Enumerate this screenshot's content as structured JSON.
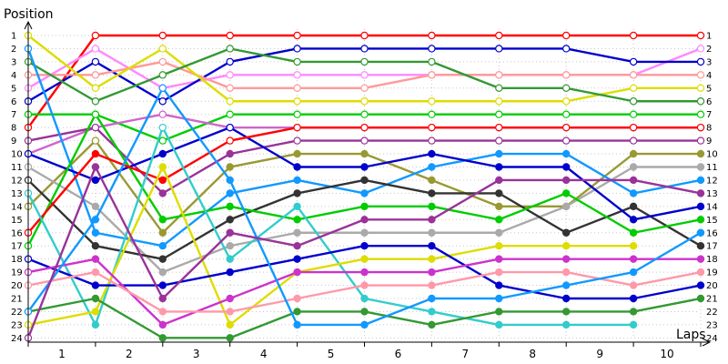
{
  "chart_data": {
    "type": "line",
    "xlabel": "Laps",
    "ylabel": "Position",
    "x_ticks": [
      1,
      2,
      3,
      4,
      5,
      6,
      7,
      8,
      9,
      10
    ],
    "y_ticks": [
      1,
      2,
      3,
      4,
      5,
      6,
      7,
      8,
      9,
      10,
      11,
      12,
      13,
      14,
      15,
      16,
      17,
      18,
      19,
      20,
      21,
      22,
      23,
      24
    ],
    "ylim": [
      1,
      24
    ],
    "y_inverted": true,
    "grid": true,
    "x": [
      0,
      1,
      2,
      3,
      4,
      5,
      6,
      7,
      8,
      9,
      10
    ],
    "series": [
      {
        "color": "#ff0000",
        "values": [
          8,
          1,
          1,
          1,
          1,
          1,
          1,
          1,
          1,
          1,
          1
        ]
      },
      {
        "color": "#ff88ff",
        "values": [
          5,
          2,
          5,
          4,
          4,
          4,
          4,
          4,
          4,
          4,
          2
        ]
      },
      {
        "color": "#0000cc",
        "values": [
          6,
          3,
          6,
          3,
          2,
          2,
          2,
          2,
          2,
          3,
          3
        ]
      },
      {
        "color": "#ff9999",
        "values": [
          4,
          4,
          3,
          5,
          5,
          5,
          4,
          4,
          4,
          4,
          4
        ]
      },
      {
        "color": "#dddd00",
        "values": [
          1,
          5,
          2,
          6,
          6,
          6,
          6,
          6,
          6,
          5,
          5
        ]
      },
      {
        "color": "#339933",
        "values": [
          3,
          6,
          4,
          2,
          3,
          3,
          3,
          5,
          5,
          6,
          6
        ]
      },
      {
        "color": "#00cc00",
        "values": [
          7,
          7,
          9,
          7,
          7,
          7,
          7,
          7,
          7,
          7,
          7
        ]
      },
      {
        "color": "#cc66cc",
        "values": [
          10,
          8,
          7,
          8,
          8,
          8,
          8,
          8,
          8,
          8,
          8
        ]
      },
      {
        "color": "#993399",
        "values": [
          9,
          8,
          13,
          10,
          9,
          9,
          9,
          9,
          9,
          9,
          9
        ]
      },
      {
        "color": "#999933",
        "values": [
          14,
          9,
          16,
          11,
          10,
          10,
          12,
          14,
          14,
          10,
          10
        ]
      },
      {
        "color": "#aaaaaa",
        "values": [
          11,
          14,
          19,
          17,
          16,
          16,
          16,
          16,
          14,
          11,
          11
        ]
      },
      {
        "color": "#1199ff",
        "values": [
          2,
          16,
          17,
          13,
          12,
          13,
          11,
          10,
          10,
          13,
          12
        ]
      },
      {
        "color": "#333333",
        "values": [
          12,
          17,
          18,
          15,
          13,
          12,
          13,
          13,
          16,
          14,
          17
        ]
      },
      {
        "color": "#0000cc",
        "values": [
          10,
          12,
          10,
          8,
          11,
          11,
          10,
          11,
          11,
          15,
          14
        ]
      },
      {
        "color": "#00cc00",
        "values": [
          17,
          7,
          15,
          14,
          15,
          14,
          14,
          15,
          13,
          16,
          15
        ]
      },
      {
        "color": "#ff0000",
        "values": [
          16,
          10,
          12,
          9,
          8,
          8,
          8,
          8,
          8,
          8,
          8
        ]
      },
      {
        "color": "#33cccc",
        "values": [
          13,
          23,
          8,
          18,
          14,
          21,
          22,
          23,
          23,
          23,
          null
        ]
      },
      {
        "color": "#dddd00",
        "values": [
          23,
          22,
          11,
          23,
          19,
          18,
          18,
          17,
          17,
          17,
          null
        ]
      },
      {
        "color": "#0000cc",
        "values": [
          18,
          20,
          20,
          19,
          18,
          17,
          17,
          20,
          21,
          21,
          20
        ]
      },
      {
        "color": "#cc33cc",
        "values": [
          19,
          18,
          23,
          21,
          19,
          19,
          19,
          18,
          18,
          18,
          18
        ]
      },
      {
        "color": "#ff99aa",
        "values": [
          20,
          19,
          22,
          22,
          21,
          20,
          20,
          19,
          19,
          20,
          19
        ]
      },
      {
        "color": "#339933",
        "values": [
          22,
          21,
          24,
          24,
          22,
          22,
          23,
          22,
          22,
          22,
          21
        ]
      },
      {
        "color": "#1199ff",
        "values": [
          22,
          15,
          5,
          12,
          23,
          23,
          21,
          21,
          20,
          19,
          16
        ]
      },
      {
        "color": "#993399",
        "values": [
          24,
          11,
          21,
          16,
          17,
          15,
          15,
          12,
          12,
          12,
          13
        ]
      }
    ]
  }
}
